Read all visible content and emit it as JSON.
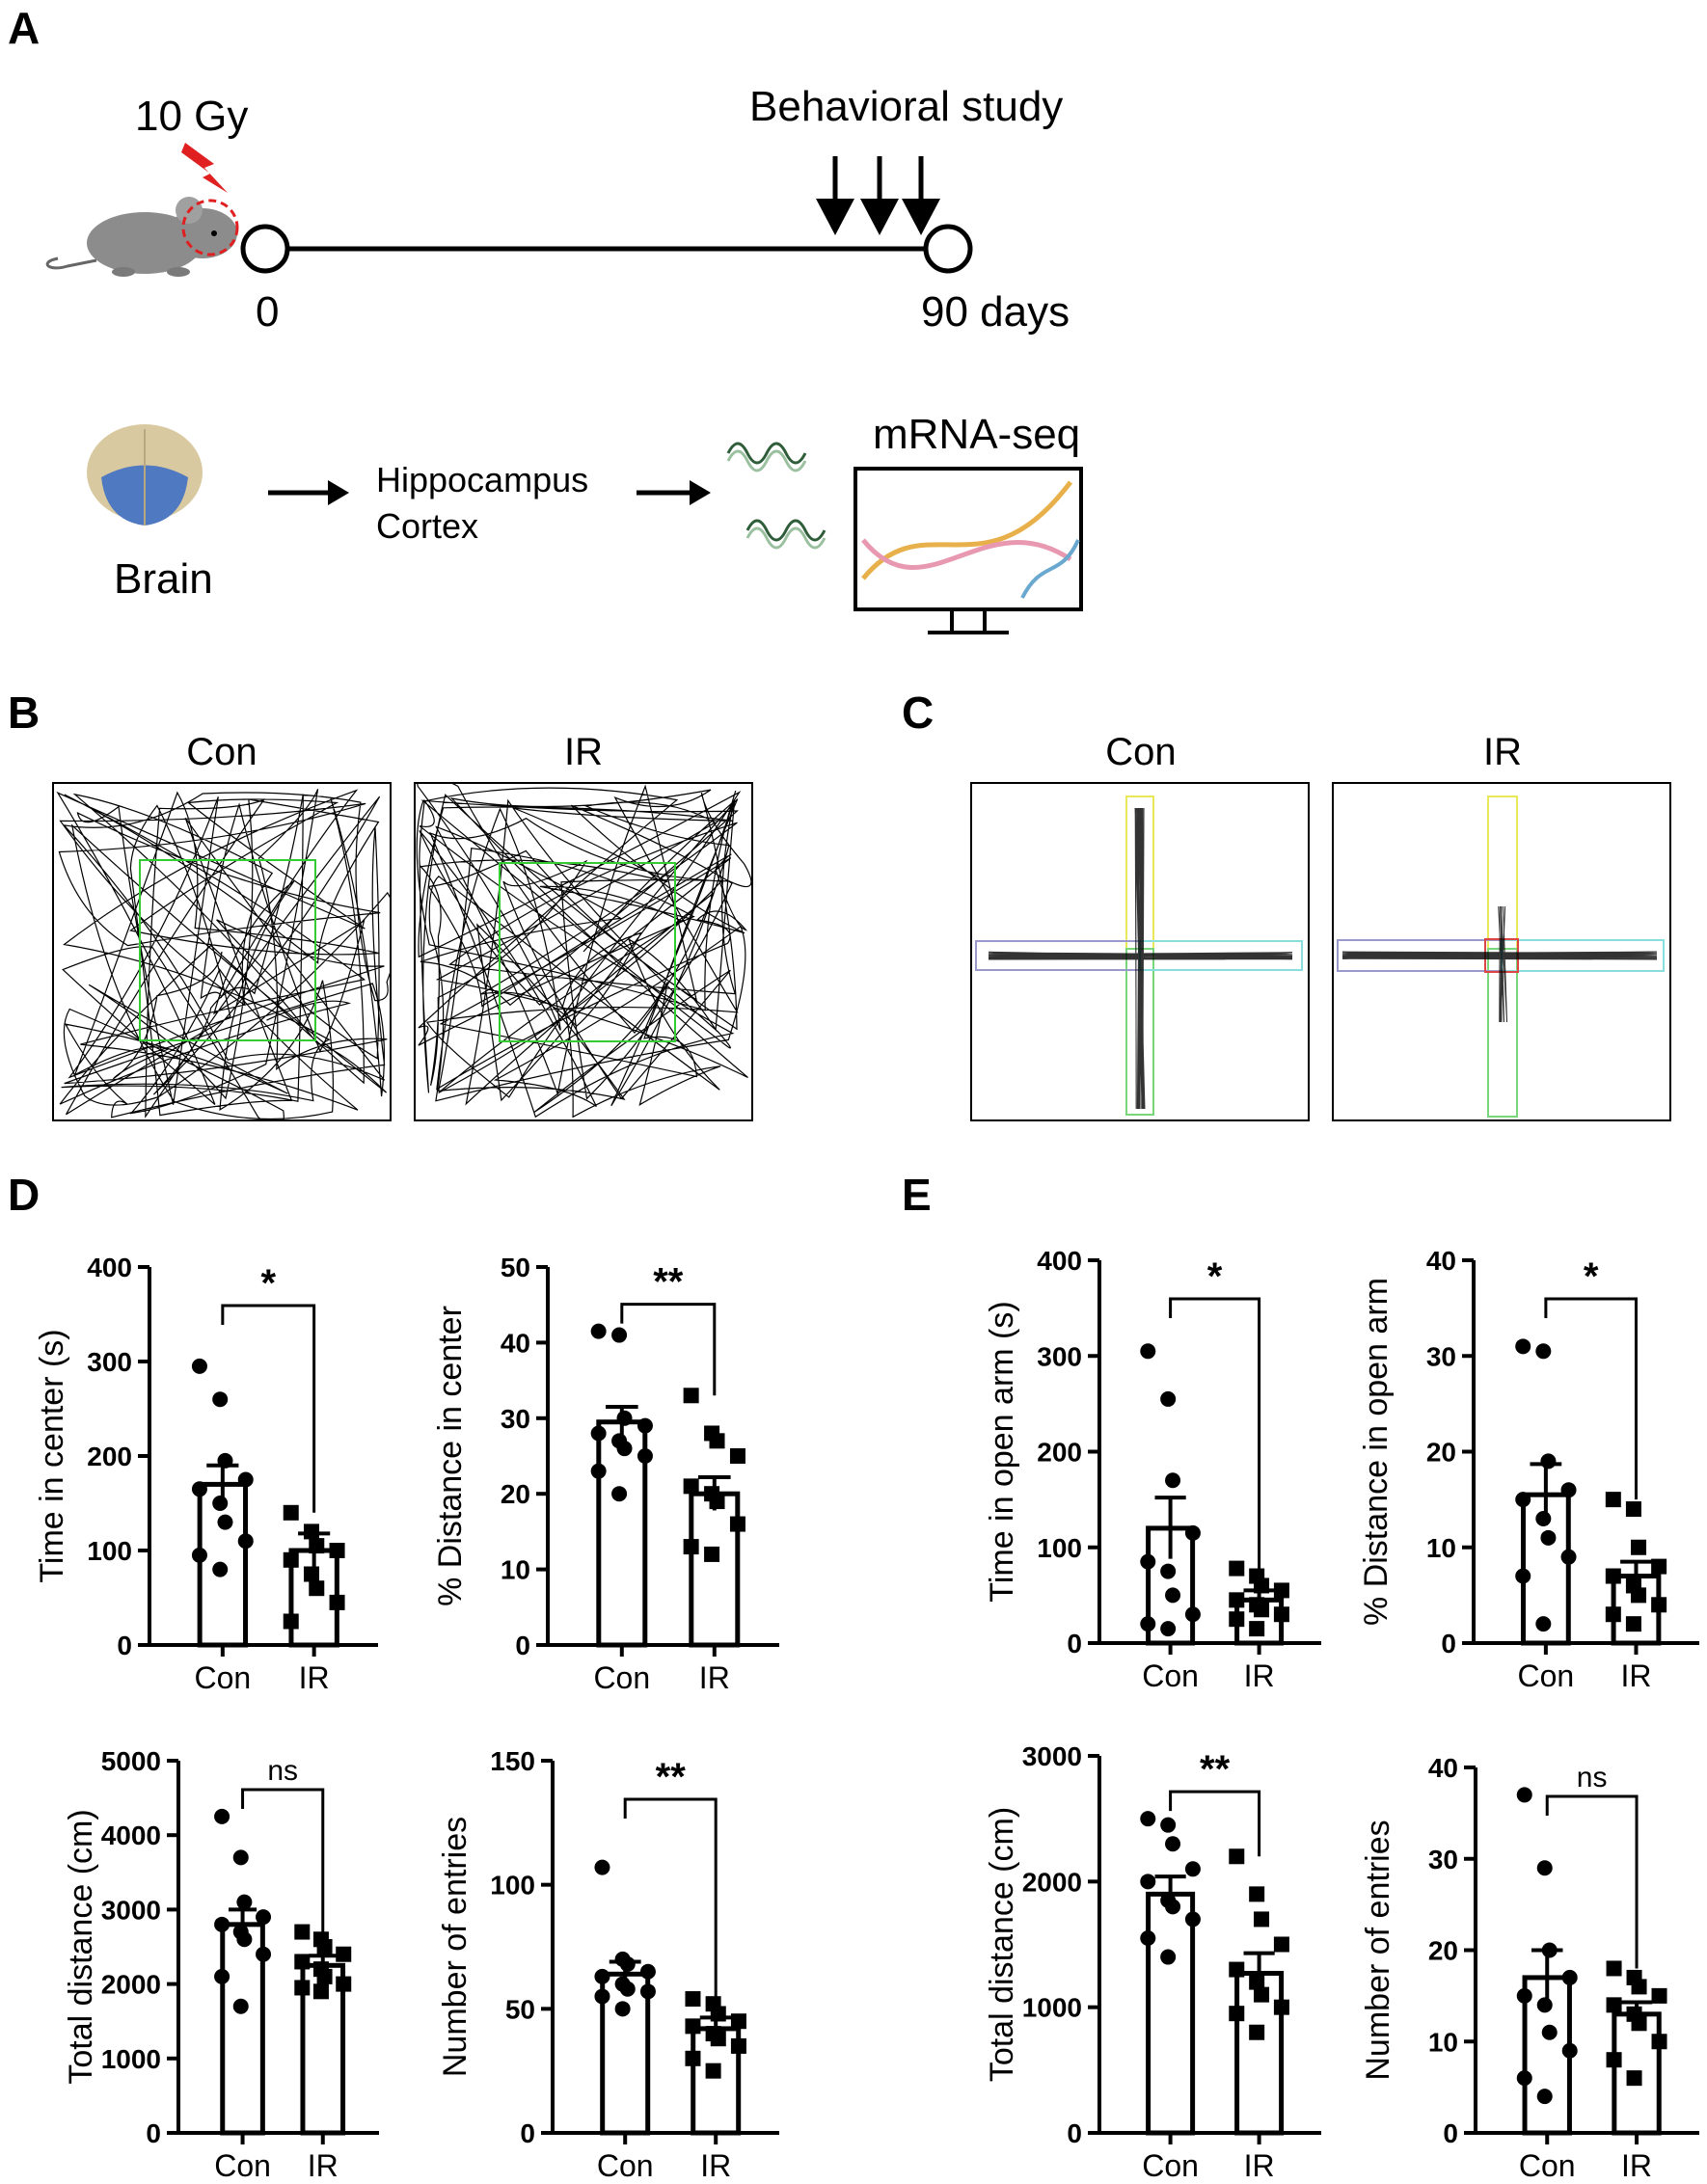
{
  "panel_labels": {
    "A": "A",
    "B": "B",
    "C": "C",
    "D": "D",
    "E": "E"
  },
  "panelA": {
    "dose": "10 Gy",
    "behavioral": "Behavioral study",
    "day_start": "0",
    "day_end": "90 days",
    "brain": "Brain",
    "region1": "Hippocampus",
    "region2": "Cortex",
    "mrna": "mRNA-seq"
  },
  "panelB": {
    "con": "Con",
    "ir": "IR"
  },
  "panelC": {
    "con": "Con",
    "ir": "IR"
  },
  "colors": {
    "bar_fill": "#ffffff",
    "bar_stroke": "#000000",
    "zone_green": "#33cc33",
    "open_arm": "#e8e85a",
    "closed_arm": "#9999cc",
    "cyan": "#88dddd",
    "dose_red": "#e02020"
  },
  "chart_data": [
    {
      "id": "D1",
      "type": "bar",
      "categories": [
        "Con",
        "IR"
      ],
      "ylabel": "Time  in center (s)",
      "ylim": [
        0,
        400
      ],
      "yticks": [
        0,
        100,
        200,
        300,
        400
      ],
      "means": [
        170,
        100
      ],
      "sem": [
        20,
        18
      ],
      "points": [
        [
          295,
          260,
          195,
          175,
          165,
          150,
          130,
          110,
          95,
          80
        ],
        [
          140,
          120,
          105,
          100,
          90,
          75,
          60,
          45,
          25
        ]
      ],
      "marker": [
        "circle",
        "square"
      ],
      "sig": "*"
    },
    {
      "id": "D2",
      "type": "bar",
      "categories": [
        "Con",
        "IR"
      ],
      "ylabel": "% Distance  in center",
      "ylim": [
        0,
        50
      ],
      "yticks": [
        0,
        10,
        20,
        30,
        40,
        50
      ],
      "means": [
        29.5,
        20
      ],
      "sem": [
        2,
        2.2
      ],
      "points": [
        [
          41.5,
          41,
          30,
          29,
          28,
          27,
          26,
          25,
          23,
          20
        ],
        [
          33,
          28,
          27,
          25,
          21,
          20,
          19,
          16,
          13,
          12
        ]
      ],
      "marker": [
        "circle",
        "square"
      ],
      "sig": "**"
    },
    {
      "id": "D3",
      "type": "bar",
      "categories": [
        "Con",
        "IR"
      ],
      "ylabel": "Total distance (cm)",
      "ylim": [
        0,
        5000
      ],
      "yticks": [
        0,
        1000,
        2000,
        3000,
        4000,
        5000
      ],
      "means": [
        2800,
        2250
      ],
      "sem": [
        200,
        130
      ],
      "points": [
        [
          4250,
          3700,
          3100,
          2900,
          2800,
          2700,
          2600,
          2400,
          2100,
          1700
        ],
        [
          2700,
          2600,
          2500,
          2400,
          2300,
          2200,
          2100,
          2000,
          1950,
          1900
        ]
      ],
      "marker": [
        "circle",
        "square"
      ],
      "sig": "ns"
    },
    {
      "id": "D4",
      "type": "bar",
      "categories": [
        "Con",
        "IR"
      ],
      "ylabel": "Number of entries",
      "ylim": [
        0,
        150
      ],
      "yticks": [
        0,
        50,
        100,
        150
      ],
      "means": [
        64,
        42
      ],
      "sem": [
        5,
        4.5
      ],
      "points": [
        [
          107,
          70,
          68,
          65,
          63,
          60,
          58,
          57,
          55,
          50
        ],
        [
          54,
          52,
          48,
          45,
          43,
          40,
          38,
          35,
          30,
          25
        ]
      ],
      "marker": [
        "circle",
        "square"
      ],
      "sig": "**"
    },
    {
      "id": "E1",
      "type": "bar",
      "categories": [
        "Con",
        "IR"
      ],
      "ylabel": "Time  in open arm (s)",
      "ylim": [
        0,
        400
      ],
      "yticks": [
        0,
        100,
        200,
        300,
        400
      ],
      "means": [
        120,
        45
      ],
      "sem": [
        32,
        10
      ],
      "points": [
        [
          305,
          255,
          170,
          115,
          85,
          75,
          50,
          30,
          20,
          15
        ],
        [
          78,
          70,
          60,
          55,
          45,
          40,
          35,
          30,
          25,
          15
        ]
      ],
      "marker": [
        "circle",
        "square"
      ],
      "sig": "*"
    },
    {
      "id": "E2",
      "type": "bar",
      "categories": [
        "Con",
        "IR"
      ],
      "ylabel": "% Distance  in open arm",
      "ylim": [
        0,
        40
      ],
      "yticks": [
        0,
        10,
        20,
        30,
        40
      ],
      "means": [
        15.5,
        7
      ],
      "sem": [
        3.2,
        1.5
      ],
      "points": [
        [
          31,
          30.5,
          19,
          16,
          15,
          13,
          11,
          9,
          7,
          2
        ],
        [
          15,
          14,
          10,
          8,
          7,
          6,
          5,
          4,
          3,
          2
        ]
      ],
      "marker": [
        "circle",
        "square"
      ],
      "sig": "*"
    },
    {
      "id": "E3",
      "type": "bar",
      "categories": [
        "Con",
        "IR"
      ],
      "ylabel": "Total distance (cm)",
      "ylim": [
        0,
        3000
      ],
      "yticks": [
        0,
        1000,
        2000,
        3000
      ],
      "means": [
        1900,
        1270
      ],
      "sem": [
        140,
        160
      ],
      "points": [
        [
          2500,
          2450,
          2300,
          2100,
          2000,
          1850,
          1800,
          1700,
          1550,
          1400
        ],
        [
          2200,
          1900,
          1700,
          1500,
          1300,
          1200,
          1100,
          1000,
          950,
          800
        ]
      ],
      "marker": [
        "circle",
        "square"
      ],
      "sig": "**"
    },
    {
      "id": "E4",
      "type": "bar",
      "categories": [
        "Con",
        "IR"
      ],
      "ylabel": "Number of entries",
      "ylim": [
        0,
        40
      ],
      "yticks": [
        0,
        10,
        20,
        30,
        40
      ],
      "means": [
        17,
        13
      ],
      "sem": [
        3,
        1.3
      ],
      "points": [
        [
          37,
          29,
          20,
          17,
          15,
          14,
          11,
          9,
          6,
          4
        ],
        [
          18,
          17,
          16,
          15,
          14,
          13,
          12,
          10,
          8,
          6
        ]
      ],
      "marker": [
        "circle",
        "square"
      ],
      "sig": "ns"
    }
  ]
}
